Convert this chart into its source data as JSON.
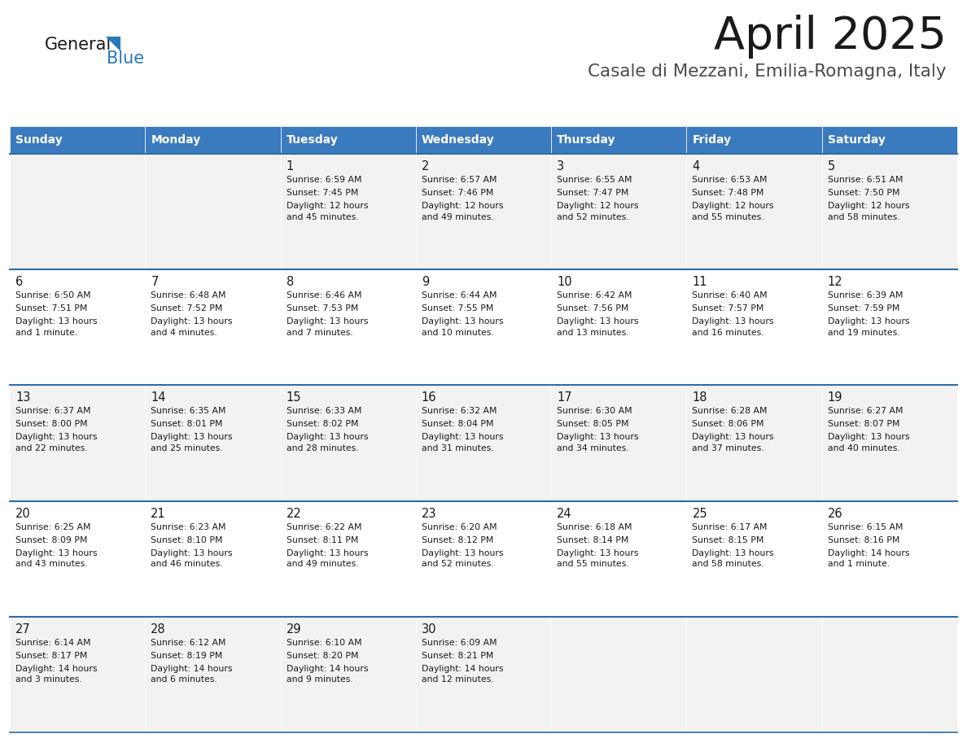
{
  "title": "April 2025",
  "subtitle": "Casale di Mezzani, Emilia-Romagna, Italy",
  "header_color": "#3a7abf",
  "header_text_color": "#ffffff",
  "row_odd_color": "#f2f2f2",
  "row_even_color": "#ffffff",
  "days_of_week": [
    "Sunday",
    "Monday",
    "Tuesday",
    "Wednesday",
    "Thursday",
    "Friday",
    "Saturday"
  ],
  "calendar_data": [
    [
      {
        "day": "",
        "sunrise": "",
        "sunset": "",
        "daylight": ""
      },
      {
        "day": "",
        "sunrise": "",
        "sunset": "",
        "daylight": ""
      },
      {
        "day": "1",
        "sunrise": "Sunrise: 6:59 AM",
        "sunset": "Sunset: 7:45 PM",
        "daylight": "Daylight: 12 hours\nand 45 minutes."
      },
      {
        "day": "2",
        "sunrise": "Sunrise: 6:57 AM",
        "sunset": "Sunset: 7:46 PM",
        "daylight": "Daylight: 12 hours\nand 49 minutes."
      },
      {
        "day": "3",
        "sunrise": "Sunrise: 6:55 AM",
        "sunset": "Sunset: 7:47 PM",
        "daylight": "Daylight: 12 hours\nand 52 minutes."
      },
      {
        "day": "4",
        "sunrise": "Sunrise: 6:53 AM",
        "sunset": "Sunset: 7:48 PM",
        "daylight": "Daylight: 12 hours\nand 55 minutes."
      },
      {
        "day": "5",
        "sunrise": "Sunrise: 6:51 AM",
        "sunset": "Sunset: 7:50 PM",
        "daylight": "Daylight: 12 hours\nand 58 minutes."
      }
    ],
    [
      {
        "day": "6",
        "sunrise": "Sunrise: 6:50 AM",
        "sunset": "Sunset: 7:51 PM",
        "daylight": "Daylight: 13 hours\nand 1 minute."
      },
      {
        "day": "7",
        "sunrise": "Sunrise: 6:48 AM",
        "sunset": "Sunset: 7:52 PM",
        "daylight": "Daylight: 13 hours\nand 4 minutes."
      },
      {
        "day": "8",
        "sunrise": "Sunrise: 6:46 AM",
        "sunset": "Sunset: 7:53 PM",
        "daylight": "Daylight: 13 hours\nand 7 minutes."
      },
      {
        "day": "9",
        "sunrise": "Sunrise: 6:44 AM",
        "sunset": "Sunset: 7:55 PM",
        "daylight": "Daylight: 13 hours\nand 10 minutes."
      },
      {
        "day": "10",
        "sunrise": "Sunrise: 6:42 AM",
        "sunset": "Sunset: 7:56 PM",
        "daylight": "Daylight: 13 hours\nand 13 minutes."
      },
      {
        "day": "11",
        "sunrise": "Sunrise: 6:40 AM",
        "sunset": "Sunset: 7:57 PM",
        "daylight": "Daylight: 13 hours\nand 16 minutes."
      },
      {
        "day": "12",
        "sunrise": "Sunrise: 6:39 AM",
        "sunset": "Sunset: 7:59 PM",
        "daylight": "Daylight: 13 hours\nand 19 minutes."
      }
    ],
    [
      {
        "day": "13",
        "sunrise": "Sunrise: 6:37 AM",
        "sunset": "Sunset: 8:00 PM",
        "daylight": "Daylight: 13 hours\nand 22 minutes."
      },
      {
        "day": "14",
        "sunrise": "Sunrise: 6:35 AM",
        "sunset": "Sunset: 8:01 PM",
        "daylight": "Daylight: 13 hours\nand 25 minutes."
      },
      {
        "day": "15",
        "sunrise": "Sunrise: 6:33 AM",
        "sunset": "Sunset: 8:02 PM",
        "daylight": "Daylight: 13 hours\nand 28 minutes."
      },
      {
        "day": "16",
        "sunrise": "Sunrise: 6:32 AM",
        "sunset": "Sunset: 8:04 PM",
        "daylight": "Daylight: 13 hours\nand 31 minutes."
      },
      {
        "day": "17",
        "sunrise": "Sunrise: 6:30 AM",
        "sunset": "Sunset: 8:05 PM",
        "daylight": "Daylight: 13 hours\nand 34 minutes."
      },
      {
        "day": "18",
        "sunrise": "Sunrise: 6:28 AM",
        "sunset": "Sunset: 8:06 PM",
        "daylight": "Daylight: 13 hours\nand 37 minutes."
      },
      {
        "day": "19",
        "sunrise": "Sunrise: 6:27 AM",
        "sunset": "Sunset: 8:07 PM",
        "daylight": "Daylight: 13 hours\nand 40 minutes."
      }
    ],
    [
      {
        "day": "20",
        "sunrise": "Sunrise: 6:25 AM",
        "sunset": "Sunset: 8:09 PM",
        "daylight": "Daylight: 13 hours\nand 43 minutes."
      },
      {
        "day": "21",
        "sunrise": "Sunrise: 6:23 AM",
        "sunset": "Sunset: 8:10 PM",
        "daylight": "Daylight: 13 hours\nand 46 minutes."
      },
      {
        "day": "22",
        "sunrise": "Sunrise: 6:22 AM",
        "sunset": "Sunset: 8:11 PM",
        "daylight": "Daylight: 13 hours\nand 49 minutes."
      },
      {
        "day": "23",
        "sunrise": "Sunrise: 6:20 AM",
        "sunset": "Sunset: 8:12 PM",
        "daylight": "Daylight: 13 hours\nand 52 minutes."
      },
      {
        "day": "24",
        "sunrise": "Sunrise: 6:18 AM",
        "sunset": "Sunset: 8:14 PM",
        "daylight": "Daylight: 13 hours\nand 55 minutes."
      },
      {
        "day": "25",
        "sunrise": "Sunrise: 6:17 AM",
        "sunset": "Sunset: 8:15 PM",
        "daylight": "Daylight: 13 hours\nand 58 minutes."
      },
      {
        "day": "26",
        "sunrise": "Sunrise: 6:15 AM",
        "sunset": "Sunset: 8:16 PM",
        "daylight": "Daylight: 14 hours\nand 1 minute."
      }
    ],
    [
      {
        "day": "27",
        "sunrise": "Sunrise: 6:14 AM",
        "sunset": "Sunset: 8:17 PM",
        "daylight": "Daylight: 14 hours\nand 3 minutes."
      },
      {
        "day": "28",
        "sunrise": "Sunrise: 6:12 AM",
        "sunset": "Sunset: 8:19 PM",
        "daylight": "Daylight: 14 hours\nand 6 minutes."
      },
      {
        "day": "29",
        "sunrise": "Sunrise: 6:10 AM",
        "sunset": "Sunset: 8:20 PM",
        "daylight": "Daylight: 14 hours\nand 9 minutes."
      },
      {
        "day": "30",
        "sunrise": "Sunrise: 6:09 AM",
        "sunset": "Sunset: 8:21 PM",
        "daylight": "Daylight: 14 hours\nand 12 minutes."
      },
      {
        "day": "",
        "sunrise": "",
        "sunset": "",
        "daylight": ""
      },
      {
        "day": "",
        "sunrise": "",
        "sunset": "",
        "daylight": ""
      },
      {
        "day": "",
        "sunrise": "",
        "sunset": "",
        "daylight": ""
      }
    ]
  ],
  "logo_general_color": "#1a1a1a",
  "logo_blue_color": "#2779bc",
  "separator_line_color": "#2e6da4",
  "fig_width": 11.88,
  "fig_height": 9.18,
  "dpi": 100
}
